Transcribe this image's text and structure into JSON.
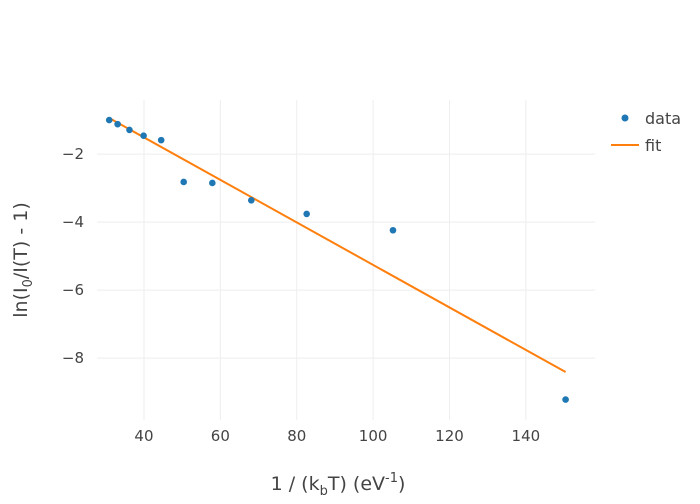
{
  "chart_data": {
    "type": "scatter",
    "title": "",
    "xlabel": {
      "main": "1 / (k",
      "sub": "b",
      "mid": "T) (eV",
      "sup": "-1",
      "end": ")"
    },
    "ylabel": {
      "main": "ln(I",
      "sub": "0",
      "end": "/I(T) - 1)"
    },
    "xlim": [
      27.7,
      158.1
    ],
    "ylim": [
      -9.82,
      -0.41
    ],
    "xticks": [
      40,
      60,
      80,
      100,
      120,
      140
    ],
    "yticks": [
      -2,
      -4,
      -6,
      -8
    ],
    "xtick_labels": [
      "40",
      "60",
      "80",
      "100",
      "120",
      "140"
    ],
    "ytick_labels": [
      "−2",
      "−4",
      "−6",
      "−8"
    ],
    "grid": true,
    "legend_position": "top-right",
    "series": [
      {
        "name": "data",
        "mode": "markers",
        "color": "#1f77b4",
        "x": [
          30.9,
          33.1,
          36.2,
          39.9,
          44.5,
          50.4,
          57.9,
          68.1,
          82.6,
          105.2,
          150.4
        ],
        "y": [
          -1.0,
          -1.12,
          -1.29,
          -1.46,
          -1.59,
          -2.82,
          -2.85,
          -3.36,
          -3.76,
          -4.24,
          -9.22
        ]
      },
      {
        "name": "fit",
        "mode": "lines",
        "color": "#ff7f0e",
        "x": [
          30.9,
          150.4
        ],
        "y": [
          -0.94,
          -8.41
        ]
      }
    ]
  }
}
